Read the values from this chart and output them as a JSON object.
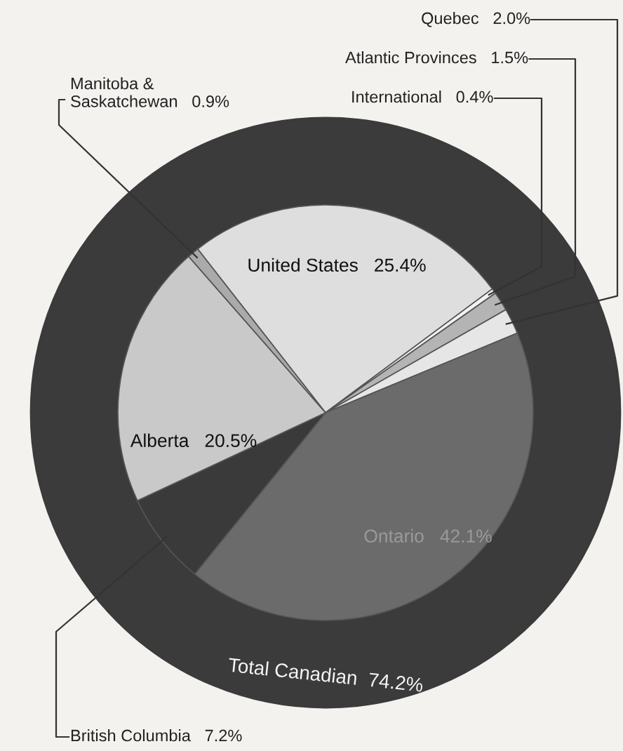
{
  "chart_data": {
    "type": "pie",
    "categories": [
      "United States",
      "International",
      "Atlantic Provinces",
      "Quebec",
      "Ontario",
      "British Columbia",
      "Alberta",
      "Manitoba & Saskatchewan"
    ],
    "values": [
      25.4,
      0.4,
      1.5,
      2.0,
      42.1,
      7.2,
      20.5,
      0.9
    ],
    "value_labels": [
      "25.4%",
      "0.4%",
      "1.5%",
      "2.0%",
      "42.1%",
      "7.2%",
      "20.5%",
      "0.9%"
    ],
    "colors": [
      "#dedede",
      "#f2f2f2",
      "#b4b4b4",
      "#e6e6e6",
      "#6b6b6b",
      "#3a3a3a",
      "#c9c9c9",
      "#aaaaaa"
    ],
    "annotations": [
      "Total Canadian  74.2%"
    ],
    "legend": false
  }
}
